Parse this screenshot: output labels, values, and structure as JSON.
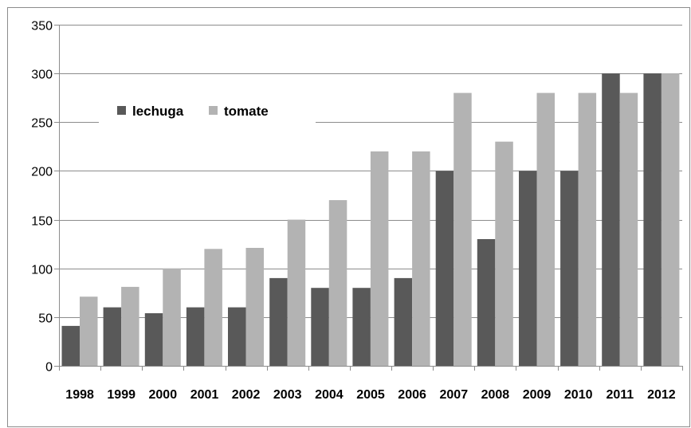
{
  "chart_data": {
    "type": "bar",
    "title": "",
    "xlabel": "",
    "ylabel": "",
    "categories": [
      "1998",
      "1999",
      "2000",
      "2001",
      "2002",
      "2003",
      "2004",
      "2005",
      "2006",
      "2007",
      "2008",
      "2009",
      "2010",
      "2011",
      "2012"
    ],
    "series": [
      {
        "name": "lechuga",
        "color": "#595959",
        "values": [
          41,
          60,
          54,
          60,
          60,
          90,
          80,
          80,
          90,
          200,
          130,
          200,
          200,
          300,
          300
        ]
      },
      {
        "name": "tomate",
        "color": "#b3b3b3",
        "values": [
          71,
          81,
          100,
          120,
          121,
          150,
          170,
          220,
          220,
          280,
          230,
          280,
          280,
          280,
          300
        ]
      }
    ],
    "ylim": [
      0,
      350
    ],
    "yticks": [
      "0",
      "50",
      "100",
      "150",
      "200",
      "250",
      "300",
      "350"
    ],
    "grid": true,
    "legend_position": "upper-left-inside"
  }
}
